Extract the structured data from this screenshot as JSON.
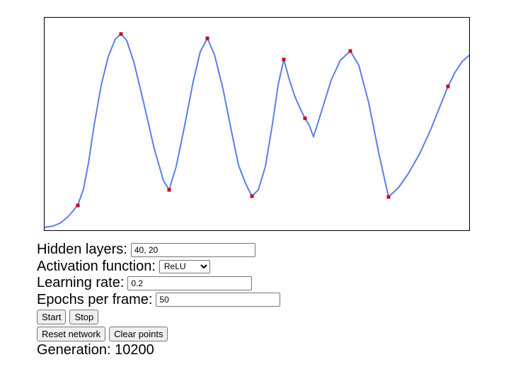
{
  "chart_data": {
    "type": "scatter",
    "curve_color": "#5b7fe6",
    "point_color": "#cc0022",
    "xlim": [
      0,
      600
    ],
    "ylim": [
      0,
      300
    ],
    "points": [
      {
        "x": 47,
        "y": 35
      },
      {
        "x": 108,
        "y": 277
      },
      {
        "x": 176,
        "y": 57
      },
      {
        "x": 230,
        "y": 271
      },
      {
        "x": 293,
        "y": 48
      },
      {
        "x": 338,
        "y": 241
      },
      {
        "x": 368,
        "y": 158
      },
      {
        "x": 432,
        "y": 253
      },
      {
        "x": 486,
        "y": 47
      },
      {
        "x": 570,
        "y": 203
      }
    ],
    "curve": [
      [
        0,
        4
      ],
      [
        12,
        6
      ],
      [
        22,
        10
      ],
      [
        32,
        18
      ],
      [
        40,
        27
      ],
      [
        47,
        36
      ],
      [
        55,
        58
      ],
      [
        62,
        95
      ],
      [
        70,
        148
      ],
      [
        80,
        205
      ],
      [
        90,
        245
      ],
      [
        100,
        270
      ],
      [
        108,
        277
      ],
      [
        116,
        268
      ],
      [
        126,
        238
      ],
      [
        140,
        180
      ],
      [
        155,
        115
      ],
      [
        168,
        70
      ],
      [
        176,
        57
      ],
      [
        186,
        90
      ],
      [
        198,
        148
      ],
      [
        210,
        210
      ],
      [
        220,
        252
      ],
      [
        230,
        271
      ],
      [
        240,
        248
      ],
      [
        252,
        200
      ],
      [
        264,
        140
      ],
      [
        274,
        92
      ],
      [
        284,
        66
      ],
      [
        293,
        48
      ],
      [
        302,
        57
      ],
      [
        312,
        90
      ],
      [
        322,
        150
      ],
      [
        330,
        205
      ],
      [
        338,
        241
      ],
      [
        346,
        212
      ],
      [
        354,
        188
      ],
      [
        362,
        170
      ],
      [
        368,
        158
      ],
      [
        374,
        148
      ],
      [
        380,
        132
      ],
      [
        392,
        170
      ],
      [
        405,
        212
      ],
      [
        418,
        240
      ],
      [
        432,
        253
      ],
      [
        444,
        233
      ],
      [
        458,
        180
      ],
      [
        472,
        110
      ],
      [
        486,
        47
      ],
      [
        500,
        60
      ],
      [
        514,
        80
      ],
      [
        530,
        108
      ],
      [
        546,
        143
      ],
      [
        560,
        178
      ],
      [
        570,
        203
      ],
      [
        580,
        223
      ],
      [
        590,
        238
      ],
      [
        600,
        247
      ]
    ]
  },
  "controls": {
    "hidden_layers_label": "Hidden layers:",
    "hidden_layers_value": "40, 20",
    "activation_label": "Activation function:",
    "activation_value": "ReLU",
    "learning_rate_label": "Learning rate:",
    "learning_rate_value": "0.2",
    "epochs_label": "Epochs per frame:",
    "epochs_value": "50",
    "start_label": "Start",
    "stop_label": "Stop",
    "reset_label": "Reset network",
    "clear_label": "Clear points",
    "generation_label": "Generation:",
    "generation_value": "10200"
  }
}
